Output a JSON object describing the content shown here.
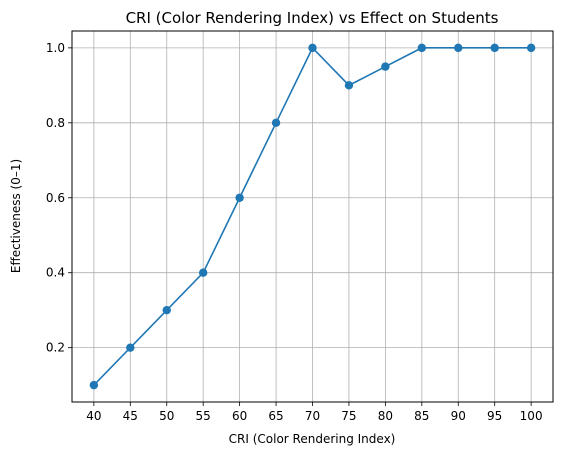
{
  "chart_data": {
    "type": "line",
    "title": "CRI (Color Rendering Index) vs Effect on Students",
    "xlabel": "CRI (Color Rendering Index)",
    "ylabel": "Effectiveness (0–1)",
    "x": [
      40,
      45,
      50,
      55,
      60,
      65,
      70,
      75,
      80,
      85,
      90,
      95,
      100
    ],
    "series": [
      {
        "values": [
          0.1,
          0.2,
          0.3,
          0.4,
          0.6,
          0.8,
          1.0,
          0.9,
          0.95,
          1.0,
          1.0,
          1.0,
          1.0
        ]
      }
    ],
    "xticks": [
      "40",
      "45",
      "50",
      "55",
      "60",
      "65",
      "70",
      "75",
      "80",
      "85",
      "90",
      "95",
      "100"
    ],
    "yticks": [
      "0.2",
      "0.4",
      "0.6",
      "0.8",
      "1.0"
    ],
    "xlim": [
      37,
      103
    ],
    "ylim": [
      0.055,
      1.045
    ],
    "grid": true,
    "marker": "circle",
    "colors": {
      "line": "#1f77b4",
      "grid": "#b0b0b0",
      "axes": "#000000"
    }
  }
}
